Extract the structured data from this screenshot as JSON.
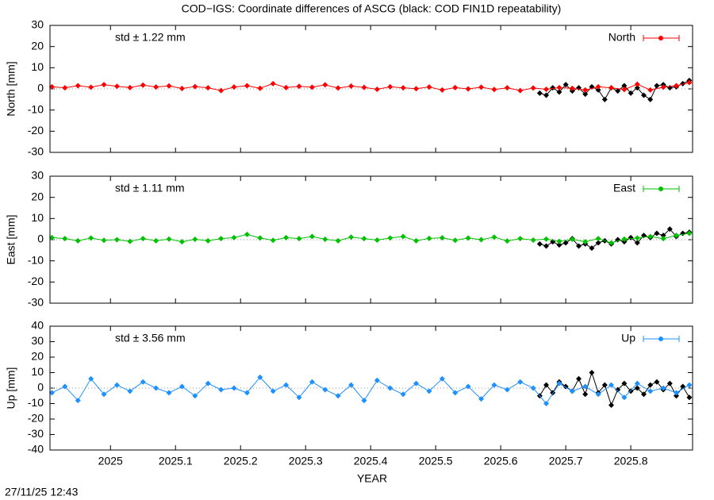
{
  "title": "COD−IGS: Coordinate differences of ASCG (black: COD FIN1D repeatability)",
  "timestamp": "27/11/25 12:43",
  "chart_data": [
    {
      "type": "line",
      "ylabel": "North [mm]",
      "annotation": "std ± 1.22 mm",
      "annotation_color": "#ff0000",
      "xlim": [
        2024.907,
        2025.895
      ],
      "ylim": [
        -30,
        30
      ],
      "yticks": [
        -30,
        -20,
        -10,
        0,
        10,
        20,
        30
      ],
      "xticks": [
        2025,
        2025.1,
        2025.2,
        2025.3,
        2025.4,
        2025.5,
        2025.6,
        2025.7,
        2025.8
      ],
      "zero_line": true,
      "series": [
        {
          "color": "#000000",
          "x": [
            2025.66,
            2025.67,
            2025.68,
            2025.69,
            2025.7,
            2025.71,
            2025.72,
            2025.73,
            2025.74,
            2025.75,
            2025.76,
            2025.77,
            2025.78,
            2025.79,
            2025.8,
            2025.81,
            2025.82,
            2025.83,
            2025.84,
            2025.85,
            2025.86,
            2025.87,
            2025.88,
            2025.89
          ],
          "values": [
            -2,
            -3,
            0.5,
            -1.5,
            2,
            -1,
            0.5,
            -2.5,
            1,
            -0.5,
            -5,
            0.5,
            -1,
            1.5,
            -2,
            0.5,
            -3,
            -5,
            1.5,
            2,
            0.5,
            1,
            2.5,
            4
          ]
        },
        {
          "name": "North",
          "color": "#ff0000",
          "x": [
            2024.91,
            2024.93,
            2024.95,
            2024.97,
            2024.99,
            2025.01,
            2025.03,
            2025.05,
            2025.07,
            2025.09,
            2025.11,
            2025.13,
            2025.15,
            2025.17,
            2025.19,
            2025.21,
            2025.23,
            2025.25,
            2025.27,
            2025.29,
            2025.31,
            2025.33,
            2025.35,
            2025.37,
            2025.39,
            2025.41,
            2025.43,
            2025.45,
            2025.47,
            2025.49,
            2025.51,
            2025.53,
            2025.55,
            2025.57,
            2025.59,
            2025.61,
            2025.63,
            2025.65,
            2025.67,
            2025.69,
            2025.71,
            2025.73,
            2025.75,
            2025.77,
            2025.79,
            2025.81,
            2025.83,
            2025.85,
            2025.87,
            2025.89
          ],
          "values": [
            1,
            0.5,
            1.5,
            0.8,
            2,
            1.2,
            0.6,
            1.8,
            0.9,
            1.4,
            0.2,
            1.1,
            0.5,
            -0.8,
            0.9,
            1.5,
            0.3,
            2.5,
            0.6,
            1.2,
            0.8,
            1.9,
            0.4,
            1.3,
            0.7,
            -0.2,
            1,
            0.5,
            0.1,
            0.9,
            -0.5,
            0.6,
            0,
            0.8,
            -0.3,
            0.5,
            -0.8,
            0.4,
            -0.2,
            0.6,
            0.3,
            -0.5,
            1,
            0.5,
            -0.3,
            2.2,
            -0.5,
            0.8,
            1.5,
            3
          ]
        }
      ]
    },
    {
      "type": "line",
      "ylabel": "East [mm]",
      "annotation": "std ± 1.11 mm",
      "annotation_color": "#00c000",
      "xlim": [
        2024.907,
        2025.895
      ],
      "ylim": [
        -30,
        30
      ],
      "yticks": [
        -30,
        -20,
        -10,
        0,
        10,
        20,
        30
      ],
      "xticks": [
        2025,
        2025.1,
        2025.2,
        2025.3,
        2025.4,
        2025.5,
        2025.6,
        2025.7,
        2025.8
      ],
      "zero_line": true,
      "series": [
        {
          "color": "#000000",
          "x": [
            2025.66,
            2025.67,
            2025.68,
            2025.69,
            2025.7,
            2025.71,
            2025.72,
            2025.73,
            2025.74,
            2025.75,
            2025.76,
            2025.77,
            2025.78,
            2025.79,
            2025.8,
            2025.81,
            2025.82,
            2025.83,
            2025.84,
            2025.85,
            2025.86,
            2025.87,
            2025.88,
            2025.89
          ],
          "values": [
            -2,
            -3,
            -1,
            -2.5,
            -1.5,
            0.5,
            -3,
            -2,
            -4,
            -1.5,
            -0.5,
            -2,
            0,
            -1,
            1,
            -1.5,
            2,
            1,
            3,
            2,
            5,
            1.5,
            3,
            3.5
          ]
        },
        {
          "name": "East",
          "color": "#00c000",
          "x": [
            2024.91,
            2024.93,
            2024.95,
            2024.97,
            2024.99,
            2025.01,
            2025.03,
            2025.05,
            2025.07,
            2025.09,
            2025.11,
            2025.13,
            2025.15,
            2025.17,
            2025.19,
            2025.21,
            2025.23,
            2025.25,
            2025.27,
            2025.29,
            2025.31,
            2025.33,
            2025.35,
            2025.37,
            2025.39,
            2025.41,
            2025.43,
            2025.45,
            2025.47,
            2025.49,
            2025.51,
            2025.53,
            2025.55,
            2025.57,
            2025.59,
            2025.61,
            2025.63,
            2025.65,
            2025.67,
            2025.69,
            2025.71,
            2025.73,
            2025.75,
            2025.77,
            2025.79,
            2025.81,
            2025.83,
            2025.85,
            2025.87,
            2025.89
          ],
          "values": [
            1,
            0.5,
            -0.5,
            0.8,
            -0.3,
            0,
            -0.8,
            0.5,
            -0.5,
            0.3,
            -1,
            0.2,
            -0.5,
            0.5,
            1,
            2.5,
            0.8,
            -0.3,
            1,
            0.5,
            1.5,
            0.2,
            -0.5,
            1.2,
            0.5,
            -0.2,
            0.8,
            1.5,
            -0.5,
            0.6,
            0.9,
            -0.3,
            0.8,
            0,
            1.2,
            -0.6,
            0.5,
            -0.2,
            0.3,
            -0.8,
            0.2,
            -1,
            0.5,
            -1.5,
            0.3,
            0.8,
            1.5,
            0.5,
            2,
            3
          ]
        }
      ]
    },
    {
      "type": "line",
      "ylabel": "Up [mm]",
      "xlabel": "YEAR",
      "annotation": "std ± 3.56 mm",
      "annotation_color": "#1e90ff",
      "xlim": [
        2024.907,
        2025.895
      ],
      "ylim": [
        -40,
        40
      ],
      "yticks": [
        -40,
        -30,
        -20,
        -10,
        0,
        10,
        20,
        30,
        40
      ],
      "xticks": [
        2025,
        2025.1,
        2025.2,
        2025.3,
        2025.4,
        2025.5,
        2025.6,
        2025.7,
        2025.8
      ],
      "zero_line": true,
      "series": [
        {
          "color": "#000000",
          "x": [
            2025.66,
            2025.67,
            2025.68,
            2025.69,
            2025.7,
            2025.71,
            2025.72,
            2025.73,
            2025.74,
            2025.75,
            2025.76,
            2025.77,
            2025.78,
            2025.79,
            2025.8,
            2025.81,
            2025.82,
            2025.83,
            2025.84,
            2025.85,
            2025.86,
            2025.87,
            2025.88,
            2025.89
          ],
          "values": [
            -5,
            2,
            -3,
            4,
            1,
            -2,
            6,
            -4,
            10,
            -3,
            2,
            -11,
            -1,
            3,
            -2,
            0,
            -4,
            2,
            4,
            -1,
            3,
            -5,
            1,
            -6
          ]
        },
        {
          "name": "Up",
          "color": "#1e90ff",
          "x": [
            2024.91,
            2024.93,
            2024.95,
            2024.97,
            2024.99,
            2025.01,
            2025.03,
            2025.05,
            2025.07,
            2025.09,
            2025.11,
            2025.13,
            2025.15,
            2025.17,
            2025.19,
            2025.21,
            2025.23,
            2025.25,
            2025.27,
            2025.29,
            2025.31,
            2025.33,
            2025.35,
            2025.37,
            2025.39,
            2025.41,
            2025.43,
            2025.45,
            2025.47,
            2025.49,
            2025.51,
            2025.53,
            2025.55,
            2025.57,
            2025.59,
            2025.61,
            2025.63,
            2025.65,
            2025.67,
            2025.69,
            2025.71,
            2025.73,
            2025.75,
            2025.77,
            2025.79,
            2025.81,
            2025.83,
            2025.85,
            2025.87,
            2025.89
          ],
          "values": [
            -3,
            1,
            -8,
            6,
            -4,
            2,
            -2,
            4,
            0,
            -3,
            1,
            -5,
            3,
            -1,
            0,
            -3,
            7,
            -2,
            2,
            -6,
            4,
            -1,
            -5,
            2,
            -8,
            5,
            0,
            -4,
            3,
            -2,
            6,
            -3,
            1,
            -7,
            2,
            -1,
            4,
            0,
            -10,
            3,
            -2,
            1,
            -4,
            2,
            -6,
            3,
            -2,
            0,
            -3,
            2
          ]
        }
      ]
    }
  ]
}
